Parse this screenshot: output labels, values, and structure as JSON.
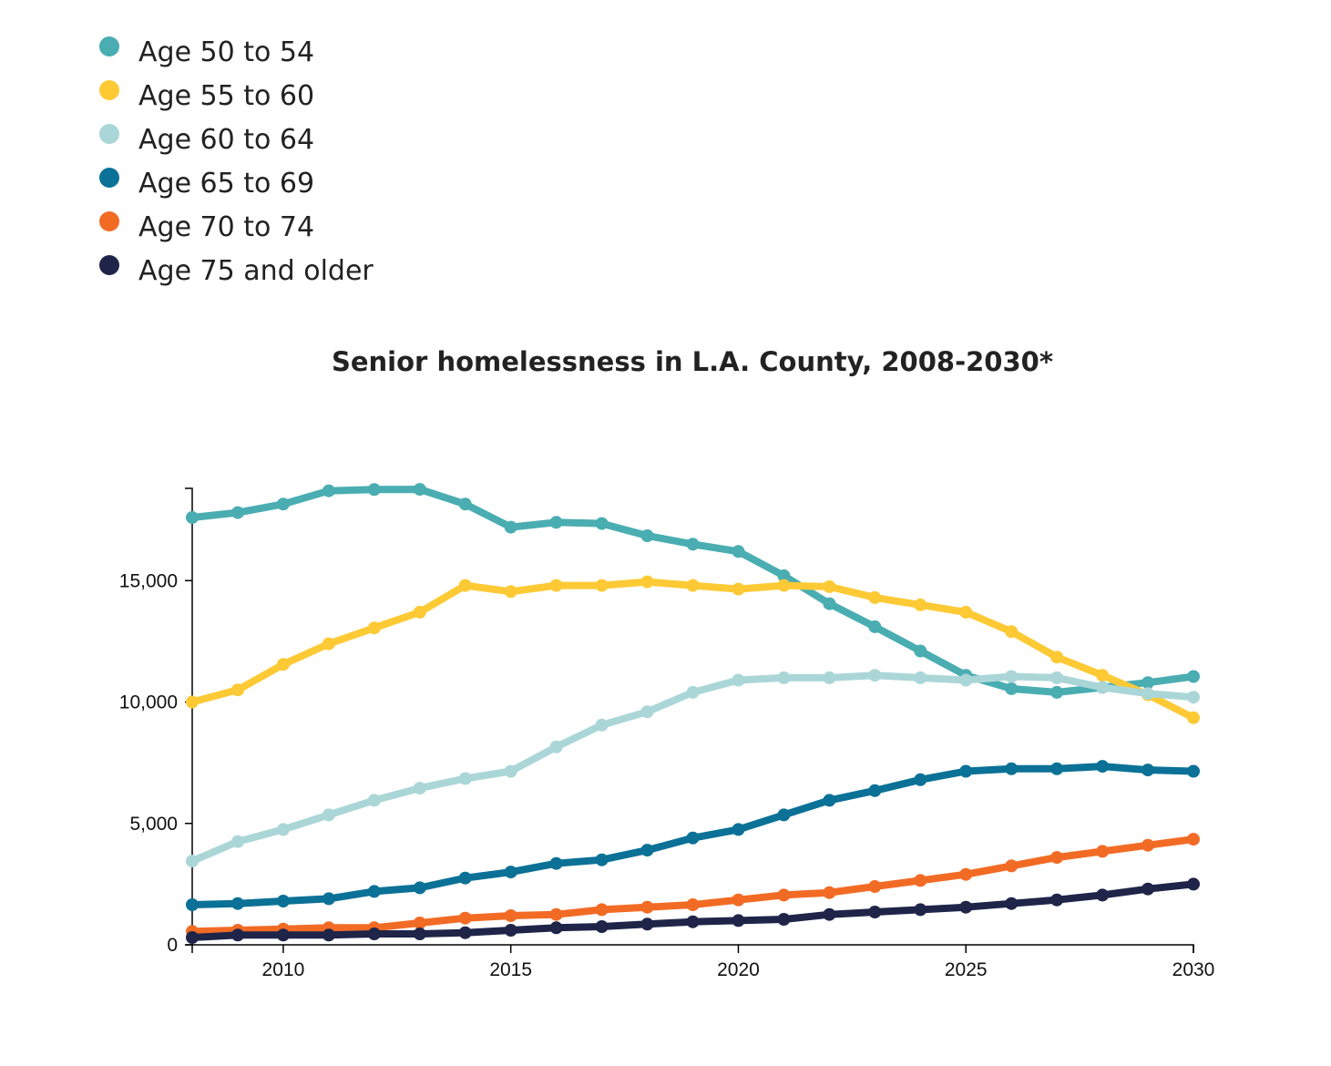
{
  "chart_data": {
    "type": "line",
    "title": "Senior homelessness in L.A. County, 2008-2030*",
    "xlabel": "",
    "ylabel": "",
    "xlim": [
      2008,
      2030
    ],
    "ylim": [
      0,
      18800
    ],
    "x_ticks": [
      2010,
      2015,
      2020,
      2025,
      2030
    ],
    "y_ticks": [
      0,
      5000,
      10000,
      15000
    ],
    "y_tick_labels": [
      "0",
      "5,000",
      "10,000",
      "15,000"
    ],
    "grid": false,
    "legend_position": "top-left",
    "x": [
      2008,
      2009,
      2010,
      2011,
      2012,
      2013,
      2014,
      2015,
      2016,
      2017,
      2018,
      2019,
      2020,
      2021,
      2022,
      2023,
      2024,
      2025,
      2026,
      2027,
      2028,
      2029,
      2030
    ],
    "series": [
      {
        "name": "Age 50 to 54",
        "color": "#4aadb1",
        "values": [
          17600,
          17800,
          18150,
          18700,
          18750,
          18760,
          18150,
          17200,
          17400,
          17350,
          16850,
          16500,
          16200,
          15200,
          14050,
          13100,
          12100,
          11100,
          10550,
          10400,
          10600,
          10800,
          11050
        ]
      },
      {
        "name": "Age 55 to 60",
        "color": "#fdca35",
        "values": [
          10000,
          10500,
          11550,
          12400,
          13050,
          13700,
          14800,
          14550,
          14800,
          14800,
          14950,
          14800,
          14650,
          14800,
          14750,
          14300,
          14000,
          13700,
          12900,
          11850,
          11100,
          10300,
          9350
        ]
      },
      {
        "name": "Age 60 to 64",
        "color": "#abd6d8",
        "values": [
          3450,
          4250,
          4750,
          5350,
          5950,
          6450,
          6850,
          7150,
          8150,
          9050,
          9600,
          10400,
          10900,
          11000,
          11000,
          11100,
          11000,
          10900,
          11050,
          11000,
          10600,
          10350,
          10200
        ]
      },
      {
        "name": "Age 65 to 69",
        "color": "#0b7196",
        "values": [
          1650,
          1700,
          1800,
          1900,
          2200,
          2350,
          2750,
          3000,
          3350,
          3500,
          3900,
          4400,
          4750,
          5350,
          5950,
          6350,
          6800,
          7150,
          7250,
          7250,
          7350,
          7200,
          7150
        ]
      },
      {
        "name": "Age 70 to 74",
        "color": "#f26b25",
        "values": [
          550,
          600,
          650,
          700,
          700,
          900,
          1100,
          1200,
          1250,
          1450,
          1550,
          1650,
          1850,
          2050,
          2150,
          2400,
          2650,
          2900,
          3250,
          3600,
          3850,
          4100,
          4350
        ]
      },
      {
        "name": "Age 75 and older",
        "color": "#1f2549",
        "values": [
          300,
          400,
          400,
          400,
          450,
          450,
          500,
          600,
          700,
          750,
          850,
          950,
          1000,
          1050,
          1250,
          1350,
          1450,
          1550,
          1700,
          1850,
          2050,
          2300,
          2500
        ]
      }
    ]
  }
}
